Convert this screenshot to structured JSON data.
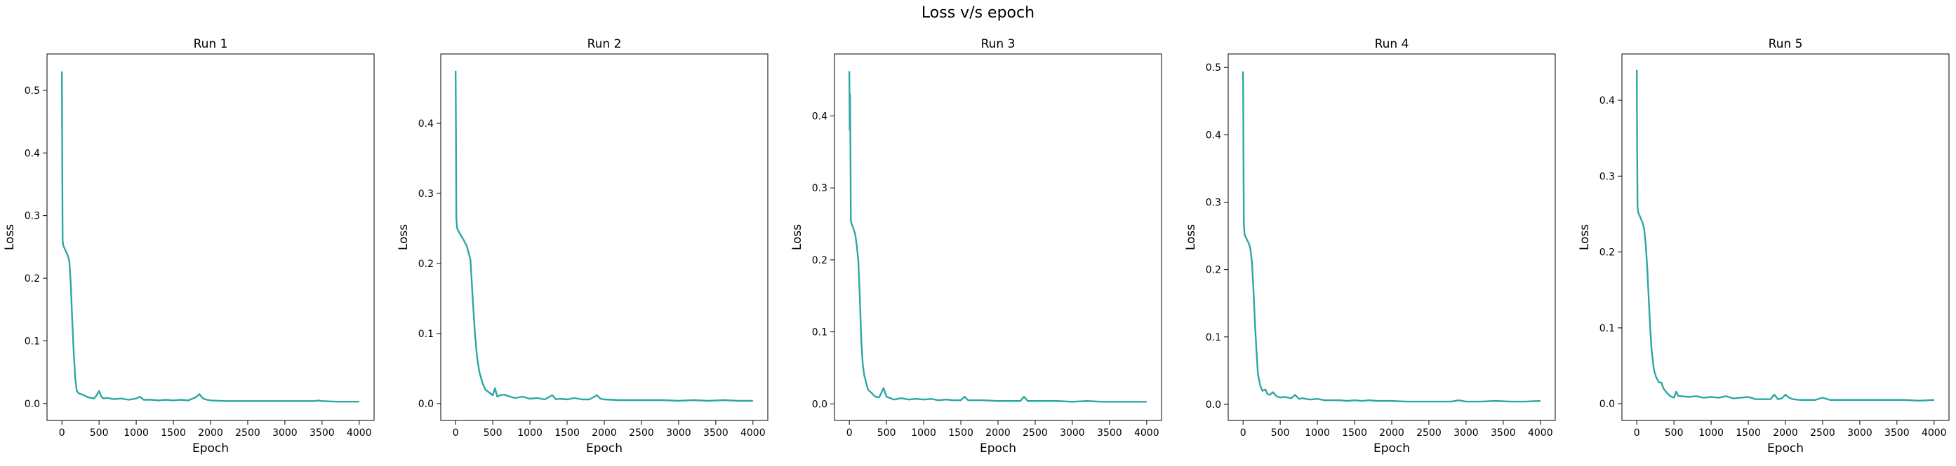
{
  "figure": {
    "title": "Loss v/s epoch"
  },
  "chart_data": [
    {
      "type": "line",
      "title": "Run 1",
      "xlabel": "Epoch",
      "ylabel": "Loss",
      "xlim": [
        -200,
        4200
      ],
      "ylim": [
        -0.027,
        0.558
      ],
      "xticks": [
        0,
        500,
        1000,
        1500,
        2000,
        2500,
        3000,
        3500,
        4000
      ],
      "yticks": [
        0.0,
        0.1,
        0.2,
        0.3,
        0.4,
        0.5
      ],
      "grid": false,
      "line_color": "#2ca7a3",
      "series": [
        {
          "x": [
            0,
            5,
            10,
            20,
            50,
            80,
            100,
            120,
            140,
            160,
            180,
            200,
            230,
            260,
            300,
            350,
            400,
            430,
            460,
            500,
            530,
            560,
            600,
            700,
            800,
            900,
            1000,
            1050,
            1100,
            1200,
            1300,
            1400,
            1500,
            1600,
            1700,
            1800,
            1850,
            1900,
            1950,
            2000,
            2200,
            2400,
            2600,
            2800,
            3000,
            3200,
            3400,
            3450,
            3500,
            3700,
            4000
          ],
          "y": [
            0.53,
            0.38,
            0.26,
            0.252,
            0.244,
            0.236,
            0.228,
            0.19,
            0.13,
            0.08,
            0.04,
            0.02,
            0.016,
            0.015,
            0.013,
            0.01,
            0.009,
            0.008,
            0.012,
            0.02,
            0.011,
            0.008,
            0.009,
            0.007,
            0.008,
            0.006,
            0.008,
            0.011,
            0.006,
            0.006,
            0.005,
            0.006,
            0.005,
            0.006,
            0.005,
            0.01,
            0.015,
            0.008,
            0.006,
            0.005,
            0.004,
            0.004,
            0.004,
            0.004,
            0.004,
            0.004,
            0.004,
            0.005,
            0.004,
            0.003,
            0.003
          ]
        }
      ]
    },
    {
      "type": "line",
      "title": "Run 2",
      "xlabel": "Epoch",
      "ylabel": "Loss",
      "xlim": [
        -200,
        4200
      ],
      "ylim": [
        -0.024,
        0.499
      ],
      "xticks": [
        0,
        500,
        1000,
        1500,
        2000,
        2500,
        3000,
        3500,
        4000
      ],
      "yticks": [
        0.0,
        0.1,
        0.2,
        0.3,
        0.4
      ],
      "grid": false,
      "line_color": "#2ca7a3",
      "series": [
        {
          "x": [
            0,
            5,
            10,
            20,
            50,
            100,
            150,
            200,
            230,
            260,
            290,
            320,
            360,
            400,
            450,
            500,
            530,
            560,
            600,
            650,
            700,
            800,
            900,
            1000,
            1100,
            1200,
            1300,
            1350,
            1400,
            1500,
            1600,
            1700,
            1800,
            1900,
            1950,
            2000,
            2200,
            2400,
            2600,
            2800,
            3000,
            3200,
            3400,
            3600,
            3800,
            4000
          ],
          "y": [
            0.475,
            0.38,
            0.265,
            0.25,
            0.244,
            0.235,
            0.225,
            0.205,
            0.15,
            0.1,
            0.065,
            0.045,
            0.03,
            0.02,
            0.016,
            0.012,
            0.022,
            0.01,
            0.012,
            0.013,
            0.011,
            0.008,
            0.01,
            0.007,
            0.008,
            0.006,
            0.012,
            0.006,
            0.007,
            0.006,
            0.008,
            0.006,
            0.006,
            0.012,
            0.007,
            0.006,
            0.005,
            0.005,
            0.005,
            0.005,
            0.004,
            0.005,
            0.004,
            0.005,
            0.004,
            0.004
          ]
        }
      ]
    },
    {
      "type": "line",
      "title": "Run 3",
      "xlabel": "Epoch",
      "ylabel": "Loss",
      "xlim": [
        -200,
        4200
      ],
      "ylim": [
        -0.023,
        0.486
      ],
      "xticks": [
        0,
        500,
        1000,
        1500,
        2000,
        2500,
        3000,
        3500,
        4000
      ],
      "yticks": [
        0.0,
        0.1,
        0.2,
        0.3,
        0.4
      ],
      "grid": false,
      "line_color": "#2ca7a3",
      "series": [
        {
          "x": [
            0,
            5,
            10,
            15,
            20,
            30,
            50,
            80,
            100,
            120,
            140,
            160,
            180,
            200,
            250,
            300,
            350,
            400,
            430,
            460,
            500,
            550,
            600,
            700,
            800,
            900,
            1000,
            1100,
            1200,
            1300,
            1400,
            1500,
            1550,
            1600,
            1800,
            2000,
            2200,
            2300,
            2350,
            2400,
            2600,
            2800,
            3000,
            3200,
            3400,
            3600,
            3800,
            4000
          ],
          "y": [
            0.462,
            0.38,
            0.43,
            0.35,
            0.255,
            0.25,
            0.245,
            0.235,
            0.22,
            0.2,
            0.15,
            0.09,
            0.055,
            0.04,
            0.02,
            0.015,
            0.01,
            0.009,
            0.015,
            0.022,
            0.01,
            0.008,
            0.006,
            0.008,
            0.006,
            0.007,
            0.006,
            0.007,
            0.005,
            0.006,
            0.005,
            0.005,
            0.01,
            0.005,
            0.005,
            0.004,
            0.004,
            0.004,
            0.01,
            0.004,
            0.004,
            0.004,
            0.003,
            0.004,
            0.003,
            0.003,
            0.003,
            0.003
          ]
        }
      ]
    },
    {
      "type": "line",
      "title": "Run 4",
      "xlabel": "Epoch",
      "ylabel": "Loss",
      "xlim": [
        -200,
        4200
      ],
      "ylim": [
        -0.024,
        0.52
      ],
      "xticks": [
        0,
        500,
        1000,
        1500,
        2000,
        2500,
        3000,
        3500,
        4000
      ],
      "yticks": [
        0.0,
        0.1,
        0.2,
        0.3,
        0.4,
        0.5
      ],
      "grid": false,
      "line_color": "#2ca7a3",
      "series": [
        {
          "x": [
            0,
            5,
            10,
            20,
            50,
            80,
            100,
            120,
            140,
            160,
            180,
            200,
            230,
            260,
            300,
            330,
            360,
            400,
            450,
            500,
            550,
            600,
            650,
            700,
            750,
            800,
            900,
            1000,
            1100,
            1200,
            1300,
            1400,
            1500,
            1600,
            1700,
            1800,
            1900,
            2000,
            2200,
            2400,
            2600,
            2800,
            2900,
            3000,
            3200,
            3400,
            3600,
            3800,
            4000
          ],
          "y": [
            0.494,
            0.38,
            0.27,
            0.252,
            0.245,
            0.238,
            0.23,
            0.21,
            0.17,
            0.12,
            0.08,
            0.045,
            0.028,
            0.02,
            0.022,
            0.015,
            0.014,
            0.018,
            0.012,
            0.01,
            0.011,
            0.01,
            0.009,
            0.014,
            0.008,
            0.009,
            0.007,
            0.008,
            0.006,
            0.006,
            0.006,
            0.005,
            0.006,
            0.005,
            0.006,
            0.005,
            0.005,
            0.005,
            0.004,
            0.004,
            0.004,
            0.004,
            0.006,
            0.004,
            0.004,
            0.005,
            0.004,
            0.004,
            0.005
          ]
        }
      ]
    },
    {
      "type": "line",
      "title": "Run 5",
      "xlabel": "Epoch",
      "ylabel": "Loss",
      "xlim": [
        -200,
        4200
      ],
      "ylim": [
        -0.022,
        0.461
      ],
      "xticks": [
        0,
        500,
        1000,
        1500,
        2000,
        2500,
        3000,
        3500,
        4000
      ],
      "yticks": [
        0.0,
        0.1,
        0.2,
        0.3,
        0.4
      ],
      "grid": false,
      "line_color": "#2ca7a3",
      "series": [
        {
          "x": [
            0,
            5,
            10,
            20,
            50,
            80,
            100,
            120,
            140,
            160,
            180,
            200,
            230,
            260,
            300,
            330,
            360,
            400,
            450,
            500,
            530,
            560,
            600,
            700,
            800,
            900,
            1000,
            1100,
            1200,
            1300,
            1400,
            1500,
            1600,
            1700,
            1800,
            1850,
            1900,
            1950,
            2000,
            2050,
            2100,
            2200,
            2400,
            2500,
            2600,
            2800,
            3000,
            3200,
            3400,
            3600,
            3800,
            4000
          ],
          "y": [
            0.44,
            0.33,
            0.26,
            0.252,
            0.245,
            0.238,
            0.23,
            0.21,
            0.18,
            0.14,
            0.1,
            0.07,
            0.045,
            0.035,
            0.028,
            0.028,
            0.02,
            0.015,
            0.01,
            0.008,
            0.016,
            0.01,
            0.01,
            0.009,
            0.01,
            0.008,
            0.009,
            0.008,
            0.01,
            0.007,
            0.008,
            0.009,
            0.006,
            0.006,
            0.006,
            0.012,
            0.006,
            0.007,
            0.012,
            0.008,
            0.006,
            0.005,
            0.005,
            0.008,
            0.005,
            0.005,
            0.005,
            0.005,
            0.005,
            0.005,
            0.004,
            0.005
          ]
        }
      ]
    }
  ]
}
